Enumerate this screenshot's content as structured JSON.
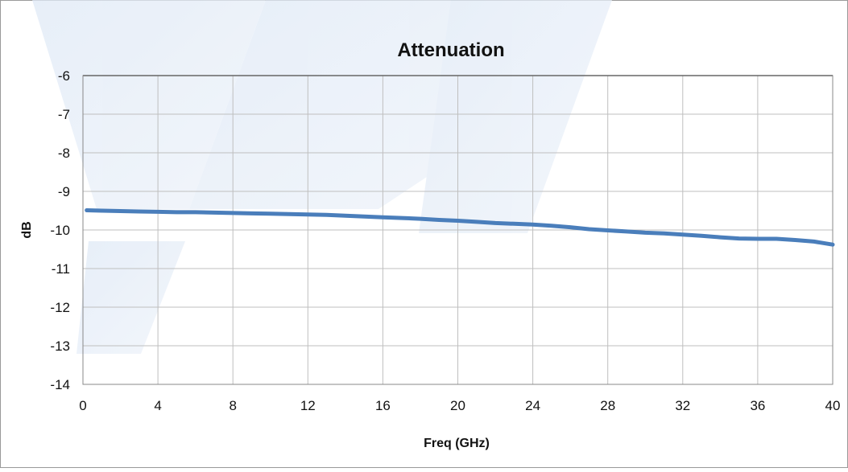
{
  "chart_data": {
    "type": "line",
    "title": "Attenuation",
    "xlabel": "Freq (GHz)",
    "ylabel": "dB",
    "xlim": [
      0,
      40
    ],
    "ylim": [
      -14,
      -6
    ],
    "x_ticks": [
      0,
      4,
      8,
      12,
      16,
      20,
      24,
      28,
      32,
      36,
      40
    ],
    "y_ticks": [
      -6,
      -7,
      -8,
      -9,
      -10,
      -11,
      -12,
      -13,
      -14
    ],
    "x_tick_labels": [
      "0",
      "4",
      "8",
      "12",
      "16",
      "20",
      "24",
      "28",
      "32",
      "36",
      "40"
    ],
    "y_tick_labels": [
      "-6",
      "-7",
      "-8",
      "-9",
      "-10",
      "-11",
      "-12",
      "-13",
      "-14"
    ],
    "grid": true,
    "legend": false,
    "series": [
      {
        "color": "#4a7ebb",
        "x": [
          0.2,
          1,
          2,
          3,
          4,
          5,
          6,
          7,
          8,
          9,
          10,
          11,
          12,
          13,
          14,
          15,
          16,
          17,
          18,
          19,
          20,
          21,
          22,
          23,
          24,
          25,
          26,
          27,
          28,
          29,
          30,
          31,
          32,
          33,
          34,
          35,
          36,
          37,
          38,
          39,
          40
        ],
        "y": [
          -9.49,
          -9.5,
          -9.51,
          -9.52,
          -9.53,
          -9.54,
          -9.54,
          -9.55,
          -9.56,
          -9.57,
          -9.58,
          -9.59,
          -9.6,
          -9.61,
          -9.63,
          -9.65,
          -9.67,
          -9.69,
          -9.71,
          -9.74,
          -9.76,
          -9.79,
          -9.82,
          -9.84,
          -9.86,
          -9.89,
          -9.93,
          -9.98,
          -10.01,
          -10.04,
          -10.07,
          -10.09,
          -10.12,
          -10.15,
          -10.19,
          -10.22,
          -10.23,
          -10.23,
          -10.26,
          -10.3,
          -10.38
        ]
      }
    ]
  }
}
